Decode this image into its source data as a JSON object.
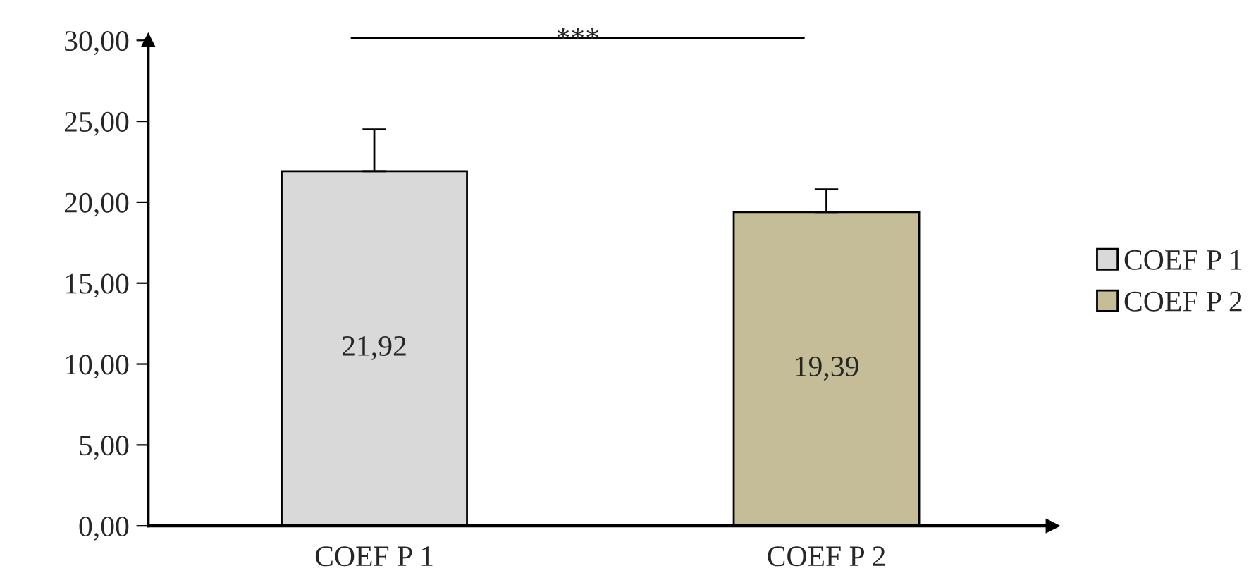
{
  "chart_data": {
    "type": "bar",
    "categories": [
      "COEF P 1",
      "COEF P 2"
    ],
    "series": [
      {
        "name": "COEF P 1",
        "color": "#d9d9d9",
        "values": [
          21.92,
          null
        ],
        "errors": [
          [
            21.92,
            24.5
          ],
          null
        ],
        "value_labels": [
          "21,92",
          null
        ]
      },
      {
        "name": "COEF P 2",
        "color": "#c4bd97",
        "values": [
          null,
          19.39
        ],
        "errors": [
          null,
          [
            19.39,
            20.8
          ]
        ],
        "value_labels": [
          null,
          "19,39"
        ]
      }
    ],
    "ylim": [
      0,
      30
    ],
    "yticks": [
      {
        "value": 0,
        "label": "0,00"
      },
      {
        "value": 5,
        "label": "5,00"
      },
      {
        "value": 10,
        "label": "10,00"
      },
      {
        "value": 15,
        "label": "15,00"
      },
      {
        "value": 20,
        "label": "20,00"
      },
      {
        "value": 25,
        "label": "25,00"
      },
      {
        "value": 30,
        "label": "30,00"
      }
    ],
    "annotations": [
      "***"
    ],
    "legend": "right",
    "grid": false
  }
}
